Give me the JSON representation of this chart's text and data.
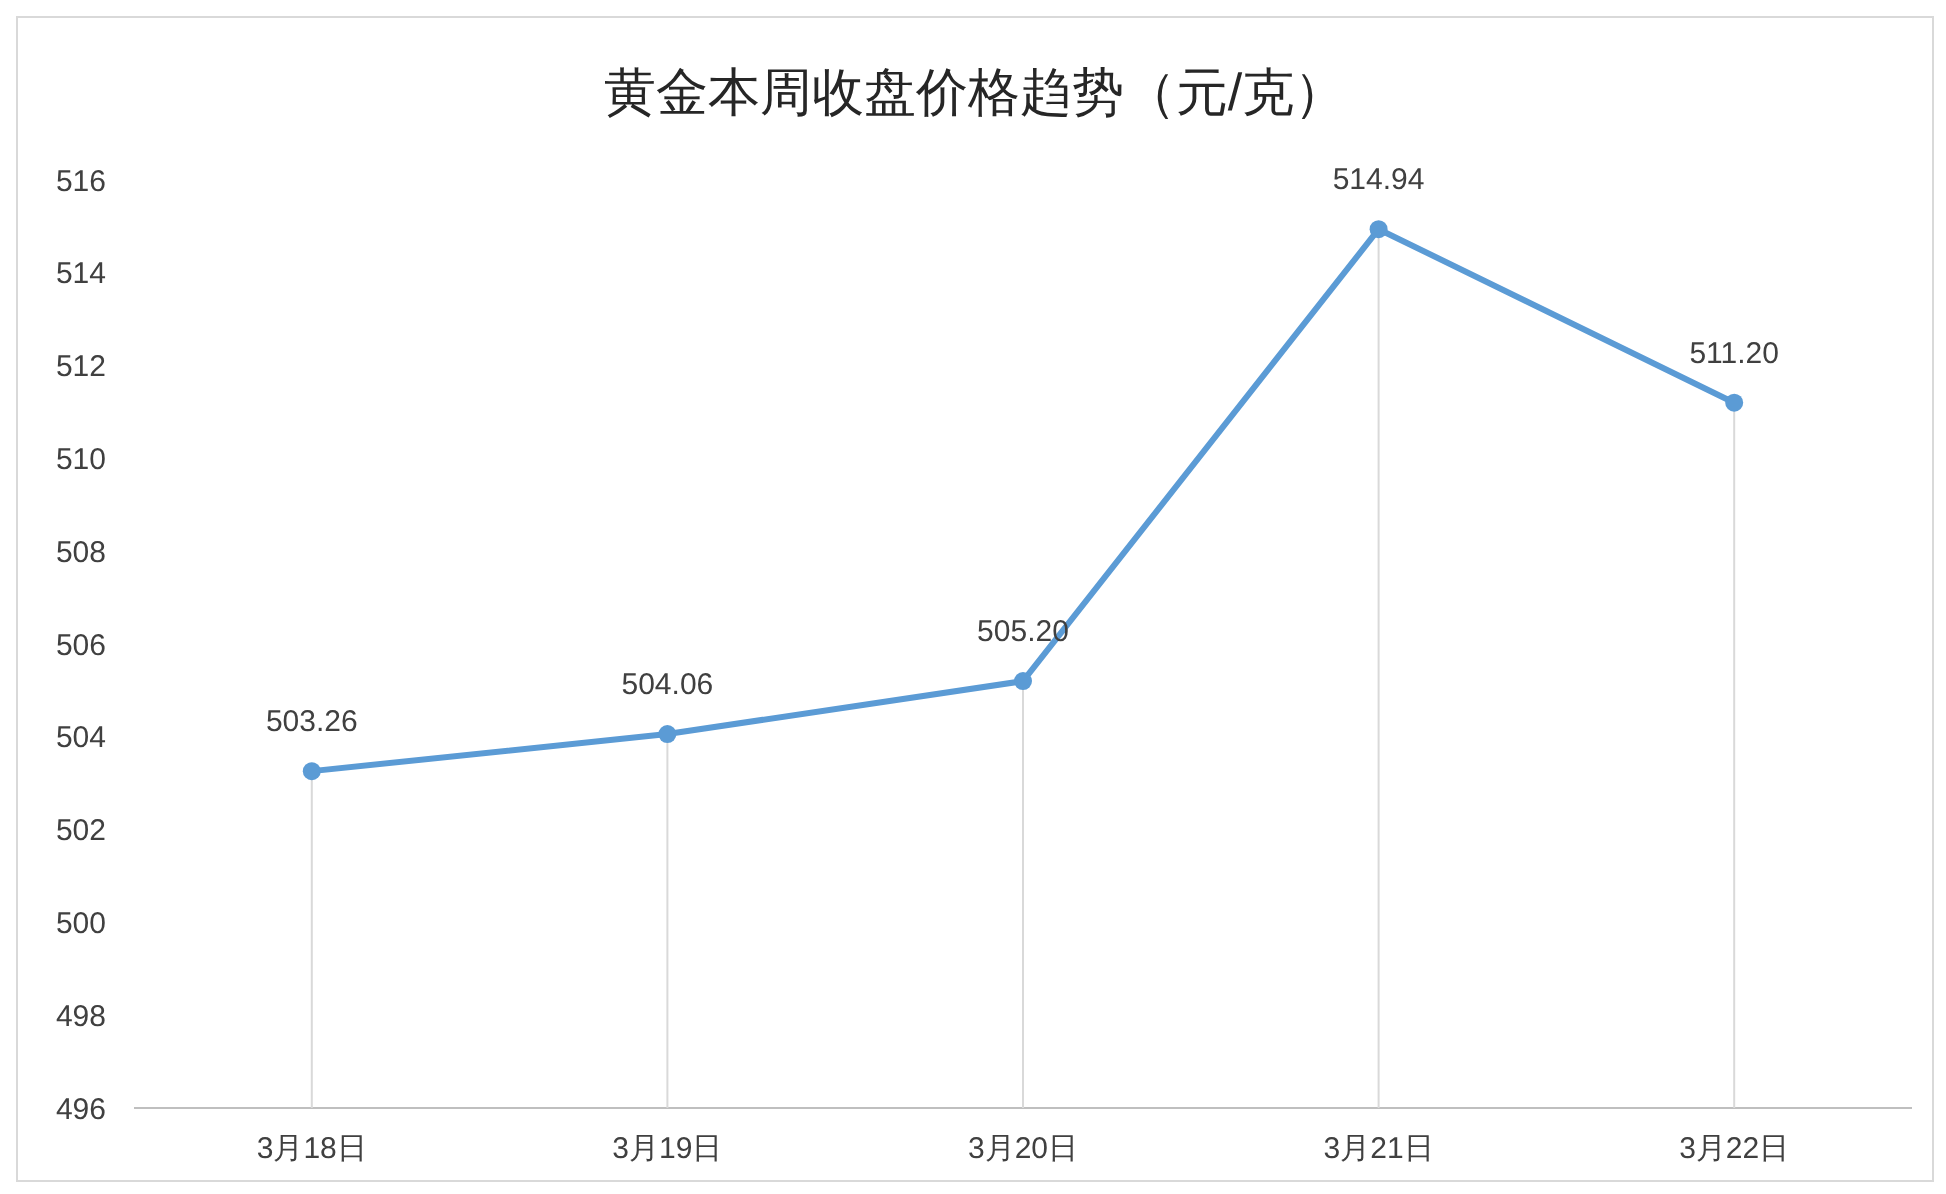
{
  "chart_data": {
    "type": "line",
    "title": "黄金本周收盘价格趋势（元/克）",
    "categories": [
      "3月18日",
      "3月19日",
      "3月20日",
      "3月21日",
      "3月22日"
    ],
    "series": [
      {
        "color": "#5b9bd5",
        "values": [
          503.26,
          504.06,
          505.2,
          514.94,
          511.2
        ]
      }
    ],
    "value_labels": [
      "503.26",
      "504.06",
      "505.20",
      "514.94",
      "511.20"
    ],
    "ylim": [
      496,
      516
    ],
    "yticks": [
      496,
      498,
      500,
      502,
      504,
      506,
      508,
      510,
      512,
      514,
      516
    ],
    "grid": "x",
    "marker": "circle",
    "line_style": "solid"
  }
}
